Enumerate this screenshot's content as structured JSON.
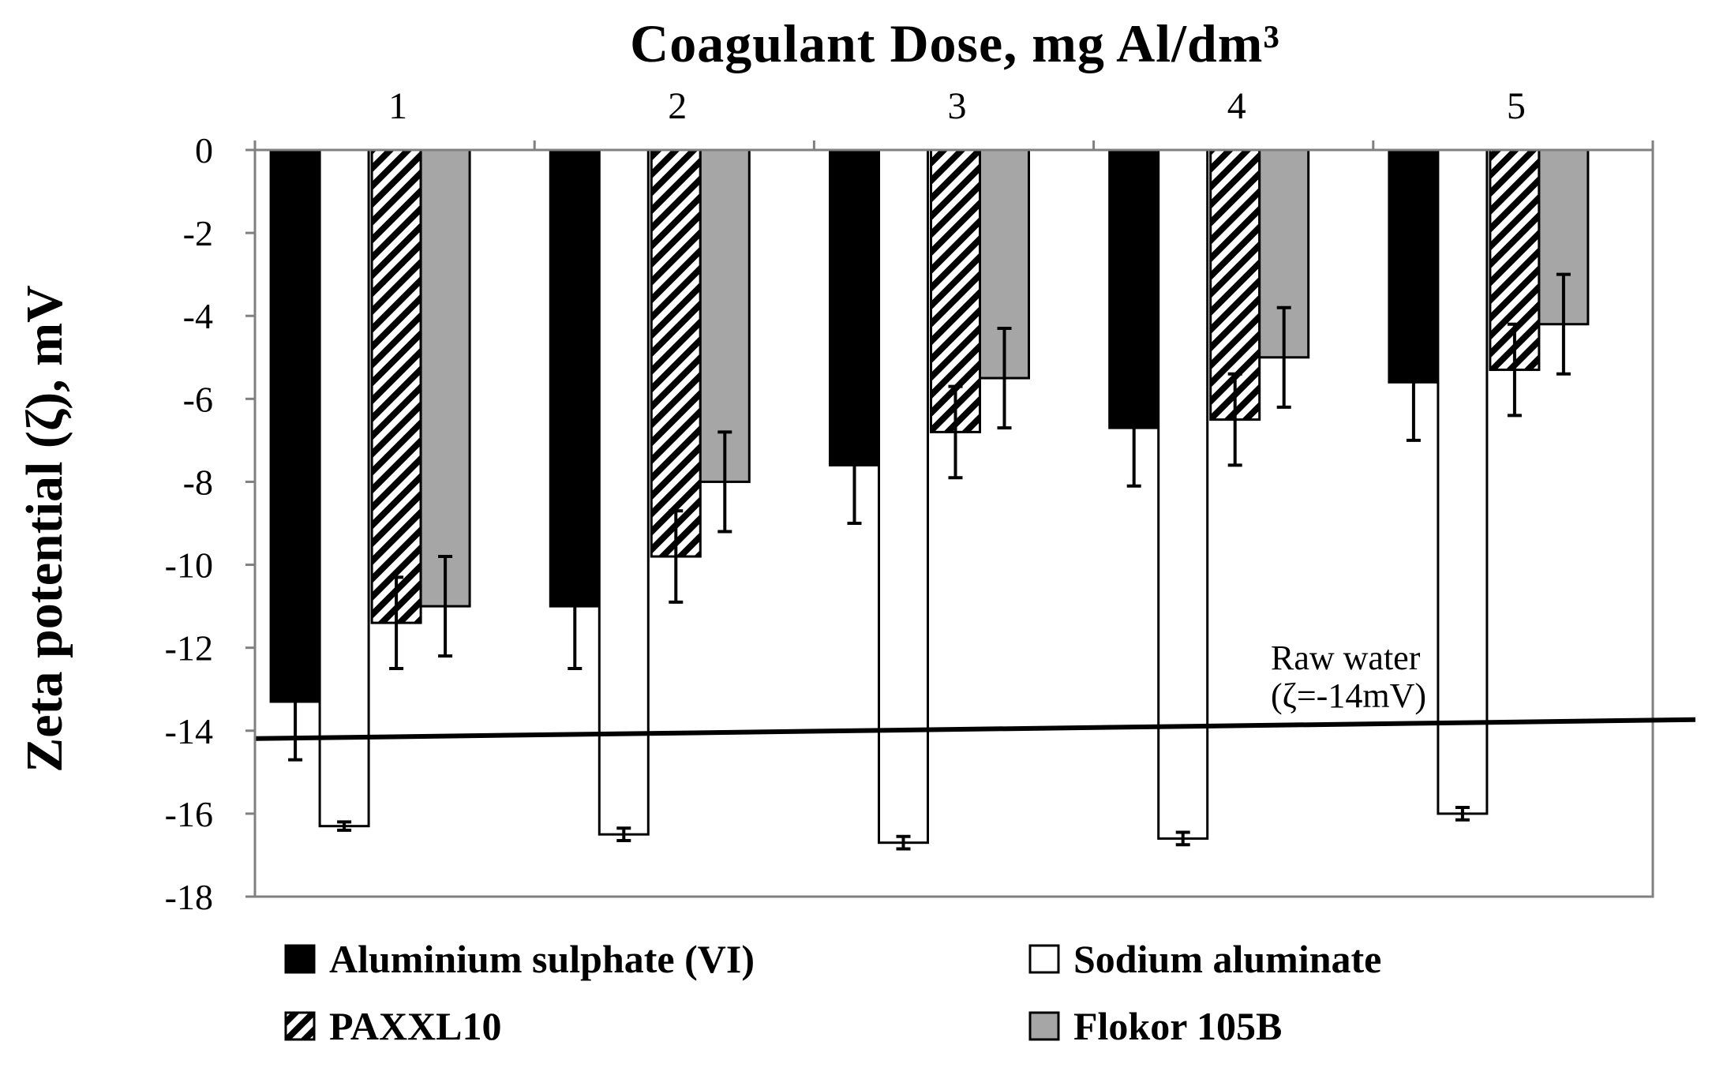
{
  "chart_data": {
    "type": "bar",
    "title": "Coagulant Dose, mg Al/dm³",
    "xlabel": "",
    "ylabel": "Zeta potential (ζ),  mV",
    "categories": [
      "1",
      "2",
      "3",
      "4",
      "5"
    ],
    "x_axis_position": "top",
    "ylim": [
      -18,
      0
    ],
    "yticks": [
      0,
      -2,
      -4,
      -6,
      -8,
      -10,
      -12,
      -14,
      -16,
      -18
    ],
    "grid": false,
    "legend_position": "bottom",
    "series": [
      {
        "name": "Aluminium sulphate (VI)",
        "color": "#000000",
        "fill": "solid",
        "values": [
          -13.3,
          -11.0,
          -7.6,
          -6.7,
          -5.6
        ],
        "errors": [
          1.4,
          1.5,
          1.4,
          1.4,
          1.4
        ]
      },
      {
        "name": "Sodium aluminate",
        "color": "#ffffff",
        "fill": "solid",
        "values": [
          -16.3,
          -16.5,
          -16.7,
          -16.6,
          -16.0
        ],
        "errors": [
          0.1,
          0.15,
          0.15,
          0.15,
          0.15
        ]
      },
      {
        "name": "PAXXL10",
        "color": "#000000",
        "fill": "diagonal-hatch",
        "values": [
          -11.4,
          -9.8,
          -6.8,
          -6.5,
          -5.3
        ],
        "errors": [
          1.1,
          1.1,
          1.1,
          1.1,
          1.1
        ]
      },
      {
        "name": "Flokor 105B",
        "color": "#a6a6a6",
        "fill": "solid",
        "values": [
          -11.0,
          -8.0,
          -5.5,
          -5.0,
          -4.2
        ],
        "errors": [
          1.2,
          1.2,
          1.2,
          1.2,
          1.2
        ]
      }
    ],
    "reference_line": {
      "value": -14,
      "label_line1": "Raw water",
      "label_line2": "(ζ=-14mV)"
    }
  }
}
